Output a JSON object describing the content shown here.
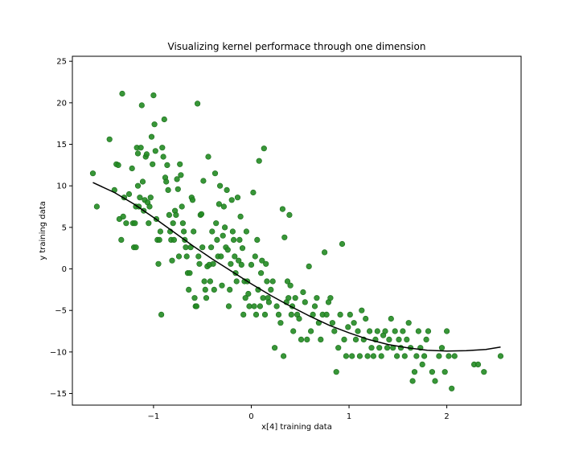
{
  "chart_data": {
    "type": "scatter",
    "title": "Visualizing kernel performace through one dimension",
    "xlabel": "x[4] training data",
    "ylabel": "y training data",
    "xlim": [
      -1.83,
      2.76
    ],
    "ylim": [
      -16.4,
      25.6
    ],
    "xticks": [
      -1,
      0,
      1,
      2
    ],
    "xtick_labels": [
      "−1",
      "0",
      "1",
      "2"
    ],
    "yticks": [
      -15,
      -10,
      -5,
      0,
      5,
      10,
      15,
      20,
      25
    ],
    "ytick_labels": [
      "−15",
      "−10",
      "−5",
      "0",
      "5",
      "10",
      "15",
      "20",
      "25"
    ],
    "grid": false,
    "legend": "none",
    "colors": {
      "points": "#228b22",
      "points_edge": "#1a6e1a",
      "curve": "#000000",
      "axes": "#000000"
    },
    "series": [
      {
        "kind": "scatter",
        "points": [
          [
            -1.62,
            11.5
          ],
          [
            -1.58,
            7.5
          ],
          [
            -1.45,
            15.6
          ],
          [
            -1.4,
            9.5
          ],
          [
            -1.38,
            12.6
          ],
          [
            -1.36,
            12.5
          ],
          [
            -1.35,
            6.0
          ],
          [
            -1.33,
            3.5
          ],
          [
            -1.32,
            21.1
          ],
          [
            -1.31,
            6.3
          ],
          [
            -1.3,
            8.6
          ],
          [
            -1.28,
            5.5
          ],
          [
            -1.25,
            9.0
          ],
          [
            -1.22,
            12.1
          ],
          [
            -1.21,
            5.5
          ],
          [
            -1.2,
            2.6
          ],
          [
            -1.19,
            5.5
          ],
          [
            -1.18,
            7.5
          ],
          [
            -1.18,
            2.6
          ],
          [
            -1.17,
            14.6
          ],
          [
            -1.16,
            10.0
          ],
          [
            -1.16,
            13.9
          ],
          [
            -1.15,
            7.5
          ],
          [
            -1.14,
            8.6
          ],
          [
            -1.13,
            14.6
          ],
          [
            -1.12,
            19.7
          ],
          [
            -1.11,
            10.5
          ],
          [
            -1.1,
            7.0
          ],
          [
            -1.09,
            8.3
          ],
          [
            -1.08,
            13.5
          ],
          [
            -1.07,
            13.8
          ],
          [
            -1.06,
            8.0
          ],
          [
            -1.05,
            5.5
          ],
          [
            -1.04,
            7.5
          ],
          [
            -1.03,
            8.6
          ],
          [
            -1.02,
            15.9
          ],
          [
            -1.01,
            12.6
          ],
          [
            -1.0,
            20.9
          ],
          [
            -0.99,
            17.4
          ],
          [
            -0.98,
            14.2
          ],
          [
            -0.97,
            6.0
          ],
          [
            -0.96,
            3.5
          ],
          [
            -0.95,
            0.6
          ],
          [
            -0.94,
            3.5
          ],
          [
            -0.93,
            4.5
          ],
          [
            -0.92,
            -5.5
          ],
          [
            -0.91,
            14.6
          ],
          [
            -0.9,
            13.5
          ],
          [
            -0.89,
            18.0
          ],
          [
            -0.88,
            11.0
          ],
          [
            -0.87,
            10.5
          ],
          [
            -0.86,
            12.5
          ],
          [
            -0.85,
            9.5
          ],
          [
            -0.84,
            6.5
          ],
          [
            -0.83,
            4.5
          ],
          [
            -0.82,
            3.5
          ],
          [
            -0.81,
            1.0
          ],
          [
            -0.8,
            5.5
          ],
          [
            -0.79,
            3.5
          ],
          [
            -0.78,
            7.0
          ],
          [
            -0.77,
            6.5
          ],
          [
            -0.76,
            10.8
          ],
          [
            -0.75,
            9.6
          ],
          [
            -0.74,
            1.5
          ],
          [
            -0.73,
            12.6
          ],
          [
            -0.72,
            11.3
          ],
          [
            -0.71,
            7.5
          ],
          [
            -0.7,
            5.5
          ],
          [
            -0.69,
            4.5
          ],
          [
            -0.68,
            3.5
          ],
          [
            -0.67,
            2.6
          ],
          [
            -0.66,
            1.5
          ],
          [
            -0.65,
            -0.5
          ],
          [
            -0.64,
            -2.5
          ],
          [
            -0.63,
            -0.5
          ],
          [
            -0.62,
            2.6
          ],
          [
            -0.61,
            8.6
          ],
          [
            -0.6,
            8.3
          ],
          [
            -0.59,
            4.5
          ],
          [
            -0.58,
            -3.5
          ],
          [
            -0.57,
            -4.5
          ],
          [
            -0.56,
            -4.5
          ],
          [
            -0.55,
            19.9
          ],
          [
            -0.54,
            1.5
          ],
          [
            -0.53,
            0.6
          ],
          [
            -0.52,
            6.5
          ],
          [
            -0.51,
            6.6
          ],
          [
            -0.5,
            2.6
          ],
          [
            -0.49,
            10.6
          ],
          [
            -0.48,
            -1.5
          ],
          [
            -0.47,
            -2.5
          ],
          [
            -0.46,
            -3.5
          ],
          [
            -0.45,
            0.3
          ],
          [
            -0.44,
            13.5
          ],
          [
            -0.43,
            0.5
          ],
          [
            -0.42,
            -1.5
          ],
          [
            -0.41,
            2.6
          ],
          [
            -0.4,
            4.5
          ],
          [
            -0.39,
            0.6
          ],
          [
            -0.38,
            -2.5
          ],
          [
            -0.37,
            11.5
          ],
          [
            -0.36,
            5.5
          ],
          [
            -0.35,
            3.5
          ],
          [
            -0.34,
            1.5
          ],
          [
            -0.33,
            7.8
          ],
          [
            -0.32,
            10.0
          ],
          [
            -0.31,
            1.5
          ],
          [
            -0.3,
            -2.0
          ],
          [
            -0.29,
            4.0
          ],
          [
            -0.28,
            7.5
          ],
          [
            -0.27,
            5.0
          ],
          [
            -0.26,
            2.6
          ],
          [
            -0.25,
            9.5
          ],
          [
            -0.24,
            2.3
          ],
          [
            -0.23,
            -4.5
          ],
          [
            -0.22,
            -2.5
          ],
          [
            -0.21,
            0.6
          ],
          [
            -0.2,
            8.3
          ],
          [
            -0.19,
            4.5
          ],
          [
            -0.18,
            3.5
          ],
          [
            -0.17,
            1.5
          ],
          [
            -0.16,
            -0.5
          ],
          [
            -0.15,
            -1.5
          ],
          [
            -0.14,
            8.6
          ],
          [
            -0.13,
            1.0
          ],
          [
            -0.12,
            3.5
          ],
          [
            -0.11,
            6.3
          ],
          [
            -0.1,
            0.5
          ],
          [
            -0.09,
            2.5
          ],
          [
            -0.08,
            -5.5
          ],
          [
            -0.07,
            -1.5
          ],
          [
            -0.06,
            -3.5
          ],
          [
            -0.05,
            4.5
          ],
          [
            -0.04,
            -1.5
          ],
          [
            -0.03,
            -3.0
          ],
          [
            -0.02,
            -4.5
          ],
          [
            0.0,
            0.5
          ],
          [
            0.02,
            9.2
          ],
          [
            0.03,
            -4.5
          ],
          [
            0.04,
            1.5
          ],
          [
            0.05,
            -5.5
          ],
          [
            0.06,
            3.5
          ],
          [
            0.07,
            -2.5
          ],
          [
            0.08,
            13.0
          ],
          [
            0.09,
            -4.5
          ],
          [
            0.1,
            -0.5
          ],
          [
            0.11,
            1.0
          ],
          [
            0.12,
            -3.5
          ],
          [
            0.13,
            14.5
          ],
          [
            0.14,
            -5.5
          ],
          [
            0.15,
            0.6
          ],
          [
            0.16,
            -1.5
          ],
          [
            0.17,
            -3.5
          ],
          [
            0.18,
            -4.0
          ],
          [
            0.2,
            -2.5
          ],
          [
            0.22,
            -1.5
          ],
          [
            0.24,
            -9.5
          ],
          [
            0.26,
            -4.5
          ],
          [
            0.28,
            -5.5
          ],
          [
            0.3,
            -6.5
          ],
          [
            0.32,
            7.2
          ],
          [
            0.33,
            -10.5
          ],
          [
            0.34,
            3.8
          ],
          [
            0.36,
            -4.0
          ],
          [
            0.37,
            -1.5
          ],
          [
            0.38,
            -3.5
          ],
          [
            0.39,
            6.5
          ],
          [
            0.4,
            -2.0
          ],
          [
            0.41,
            -5.5
          ],
          [
            0.42,
            -4.5
          ],
          [
            0.43,
            -7.5
          ],
          [
            0.45,
            -3.5
          ],
          [
            0.47,
            -5.5
          ],
          [
            0.49,
            -6.0
          ],
          [
            0.51,
            -8.5
          ],
          [
            0.53,
            -2.8
          ],
          [
            0.55,
            -4.0
          ],
          [
            0.57,
            -8.5
          ],
          [
            0.59,
            0.3
          ],
          [
            0.61,
            -7.5
          ],
          [
            0.63,
            -5.5
          ],
          [
            0.65,
            -4.5
          ],
          [
            0.67,
            -3.5
          ],
          [
            0.69,
            -6.5
          ],
          [
            0.71,
            -8.5
          ],
          [
            0.73,
            -5.5
          ],
          [
            0.75,
            2.0
          ],
          [
            0.77,
            -5.5
          ],
          [
            0.79,
            -4.0
          ],
          [
            0.81,
            -3.5
          ],
          [
            0.83,
            -6.5
          ],
          [
            0.85,
            -7.5
          ],
          [
            0.87,
            -12.4
          ],
          [
            0.89,
            -9.5
          ],
          [
            0.91,
            -5.5
          ],
          [
            0.93,
            3.0
          ],
          [
            0.95,
            -8.5
          ],
          [
            0.97,
            -10.5
          ],
          [
            0.99,
            -7.0
          ],
          [
            1.01,
            -5.5
          ],
          [
            1.03,
            -10.5
          ],
          [
            1.05,
            -6.5
          ],
          [
            1.07,
            -8.5
          ],
          [
            1.09,
            -7.5
          ],
          [
            1.11,
            -10.5
          ],
          [
            1.13,
            -5.0
          ],
          [
            1.15,
            -8.5
          ],
          [
            1.17,
            -6.0
          ],
          [
            1.19,
            -10.5
          ],
          [
            1.21,
            -7.5
          ],
          [
            1.23,
            -9.5
          ],
          [
            1.25,
            -10.5
          ],
          [
            1.27,
            -8.5
          ],
          [
            1.29,
            -7.5
          ],
          [
            1.31,
            -9.5
          ],
          [
            1.33,
            -10.5
          ],
          [
            1.35,
            -8.0
          ],
          [
            1.37,
            -7.5
          ],
          [
            1.39,
            -9.5
          ],
          [
            1.41,
            -8.5
          ],
          [
            1.43,
            -6.0
          ],
          [
            1.45,
            -9.5
          ],
          [
            1.47,
            -7.5
          ],
          [
            1.49,
            -10.5
          ],
          [
            1.51,
            -8.5
          ],
          [
            1.53,
            -9.5
          ],
          [
            1.55,
            -7.5
          ],
          [
            1.57,
            -10.5
          ],
          [
            1.59,
            -8.5
          ],
          [
            1.61,
            -6.5
          ],
          [
            1.63,
            -9.5
          ],
          [
            1.65,
            -13.5
          ],
          [
            1.67,
            -12.4
          ],
          [
            1.69,
            -10.5
          ],
          [
            1.71,
            -7.5
          ],
          [
            1.73,
            -9.5
          ],
          [
            1.75,
            -11.5
          ],
          [
            1.77,
            -10.5
          ],
          [
            1.79,
            -8.5
          ],
          [
            1.81,
            -7.5
          ],
          [
            1.85,
            -12.4
          ],
          [
            1.88,
            -13.5
          ],
          [
            1.92,
            -10.5
          ],
          [
            1.95,
            -9.5
          ],
          [
            1.98,
            -12.4
          ],
          [
            2.0,
            -7.5
          ],
          [
            2.02,
            -10.5
          ],
          [
            2.05,
            -14.4
          ],
          [
            2.08,
            -10.5
          ],
          [
            2.28,
            -11.5
          ],
          [
            2.32,
            -11.5
          ],
          [
            2.38,
            -12.4
          ],
          [
            2.55,
            -10.5
          ]
        ]
      },
      {
        "kind": "line",
        "points": [
          [
            -1.62,
            10.4
          ],
          [
            -1.4,
            9.2
          ],
          [
            -1.2,
            7.8
          ],
          [
            -1.0,
            6.2
          ],
          [
            -0.8,
            4.5
          ],
          [
            -0.6,
            2.8
          ],
          [
            -0.4,
            1.2
          ],
          [
            -0.2,
            -0.3
          ],
          [
            0.0,
            -1.8
          ],
          [
            0.2,
            -3.2
          ],
          [
            0.4,
            -4.5
          ],
          [
            0.6,
            -5.7
          ],
          [
            0.8,
            -6.8
          ],
          [
            1.0,
            -7.7
          ],
          [
            1.2,
            -8.5
          ],
          [
            1.4,
            -9.1
          ],
          [
            1.6,
            -9.5
          ],
          [
            1.8,
            -9.8
          ],
          [
            2.0,
            -9.9
          ],
          [
            2.2,
            -9.85
          ],
          [
            2.4,
            -9.7
          ],
          [
            2.55,
            -9.4
          ]
        ]
      }
    ]
  }
}
